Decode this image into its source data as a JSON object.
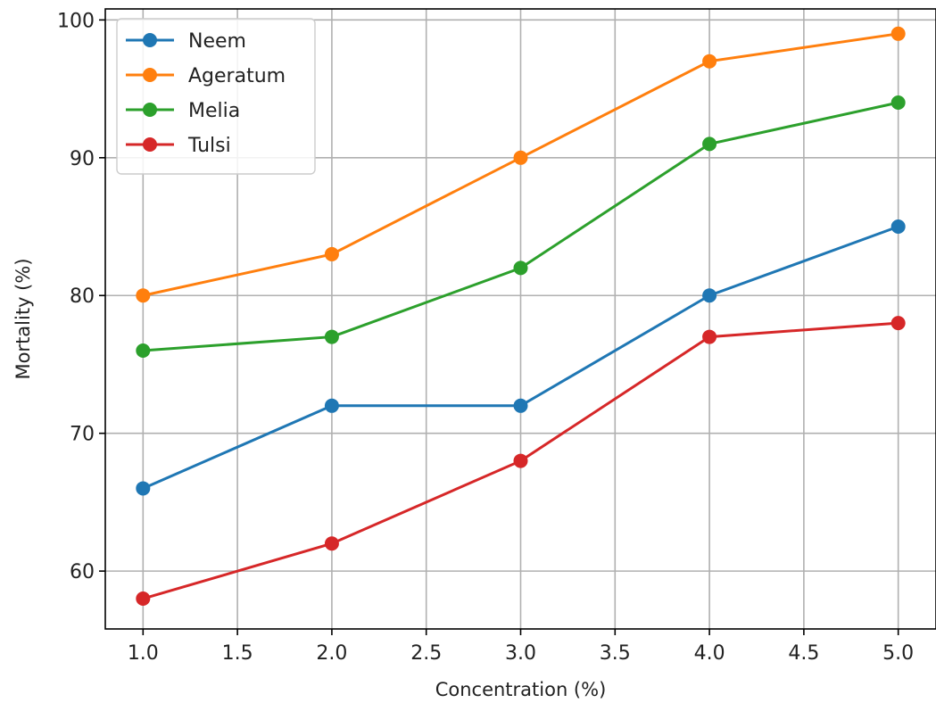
{
  "chart_data": {
    "type": "line",
    "title": "",
    "xlabel": "Concentration (%)",
    "ylabel": "Mortality (%)",
    "xlim": [
      0.8,
      5.2
    ],
    "ylim": [
      55.8,
      100.8
    ],
    "xticks": [
      1.0,
      1.5,
      2.0,
      2.5,
      3.0,
      3.5,
      4.0,
      4.5,
      5.0
    ],
    "xtick_labels": [
      "1.0",
      "1.5",
      "2.0",
      "2.5",
      "3.0",
      "3.5",
      "4.0",
      "4.5",
      "5.0"
    ],
    "yticks": [
      60,
      70,
      80,
      90,
      100
    ],
    "ytick_labels": [
      "60",
      "70",
      "80",
      "90",
      "100"
    ],
    "grid": true,
    "legend_position": "top-left",
    "x": [
      1.0,
      2.0,
      3.0,
      4.0,
      5.0
    ],
    "series": [
      {
        "name": "Neem",
        "color": "#1f77b4",
        "values": [
          66,
          72,
          72,
          80,
          85
        ]
      },
      {
        "name": "Ageratum",
        "color": "#ff7f0e",
        "values": [
          80,
          83,
          90,
          97,
          99
        ]
      },
      {
        "name": "Melia",
        "color": "#2ca02c",
        "values": [
          76,
          77,
          82,
          91,
          94
        ]
      },
      {
        "name": "Tulsi",
        "color": "#d62728",
        "values": [
          58,
          62,
          68,
          77,
          78
        ]
      }
    ]
  }
}
